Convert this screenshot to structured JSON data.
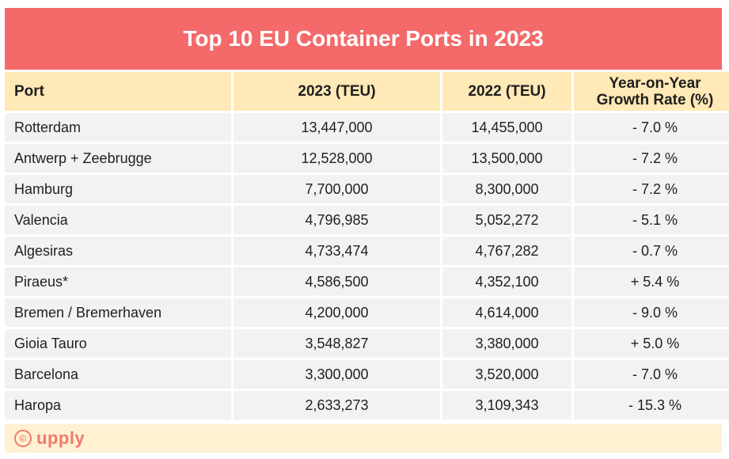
{
  "chart_data": {
    "type": "table",
    "title": "Top 10 EU Container Ports in 2023",
    "columns": [
      "Port",
      "2023 (TEU)",
      "2022 (TEU)",
      "Year-on-Year Growth Rate (%)"
    ],
    "rows": [
      [
        "Rotterdam",
        "13,447,000",
        "14,455,000",
        "- 7.0 %"
      ],
      [
        "Antwerp + Zeebrugge",
        "12,528,000",
        "13,500,000",
        "- 7.2 %"
      ],
      [
        "Hamburg",
        "7,700,000",
        "8,300,000",
        "- 7.2 %"
      ],
      [
        "Valencia",
        "4,796,985",
        "5,052,272",
        "- 5.1 %"
      ],
      [
        "Algesiras",
        "4,733,474",
        "4,767,282",
        "- 0.7 %"
      ],
      [
        "Piraeus*",
        "4,586,500",
        "4,352,100",
        "+ 5.4 %"
      ],
      [
        "Bremen / Bremerhaven",
        "4,200,000",
        "4,614,000",
        "- 9.0 %"
      ],
      [
        "Gioia Tauro",
        "3,548,827",
        "3,380,000",
        "+ 5.0 %"
      ],
      [
        "Barcelona",
        "3,300,000",
        "3,520,000",
        "- 7.0 %"
      ],
      [
        "Haropa",
        "2,633,273",
        "3,109,343",
        "- 15.3 %"
      ]
    ]
  },
  "footer": {
    "logo_text": "upply",
    "logo_symbol": "©"
  },
  "colors": {
    "title_bg": "#f46a6a",
    "header_bg": "#ffe9b6",
    "row_bg": "#f2f2f2",
    "footer_bg": "#fff1d2",
    "logo": "#f27a6a"
  }
}
